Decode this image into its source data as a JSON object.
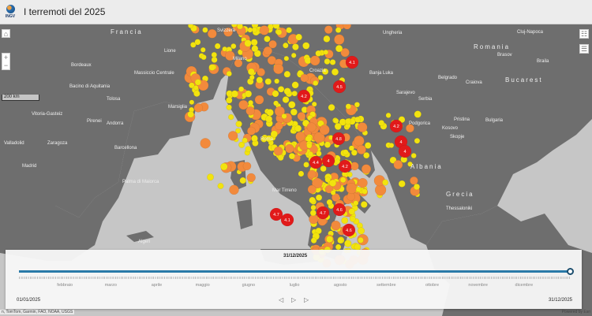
{
  "header": {
    "logo_text": "INGV",
    "title": "I terremoti del 2025"
  },
  "map": {
    "controls": {
      "home": "home-icon",
      "zoom_in": "+",
      "zoom_out": "−",
      "legend": "legend-icon",
      "layers": "layer-list-icon"
    },
    "scale": "200 km",
    "place_labels": [
      "Francia",
      "Svizzera",
      "Ungheria",
      "Cluj-Napoca",
      "Romania",
      "Brasov",
      "Braila",
      "Lione",
      "Bordeaux",
      "Massiccio Centrale",
      "Bacino di Aquitania",
      "Tolosa",
      "Marsiglia",
      "Vitoria-Gasteiz",
      "Pirenei",
      "Andorra",
      "Zaragoza",
      "Barcellona",
      "Valladolid",
      "Madrid",
      "Palma di Maiorca",
      "Croazia",
      "Banja Luka",
      "Sarajevo",
      "Serbia",
      "Belgrado",
      "Craiova",
      "Bucarest",
      "Bulgaria",
      "Pristina",
      "Kosovo",
      "Skopje",
      "Podgorica",
      "Albania",
      "Grecia",
      "Thessaloniki",
      "Roma",
      "Mar Tirreno",
      "Milano",
      "Algeri"
    ],
    "colors": {
      "small": "#f2e30e",
      "medium": "#f28a3c",
      "large": "#e11a1a",
      "land": "#6e6e6e",
      "sea": "#c6c6c6"
    },
    "major_events": [
      "4.1",
      "4.5",
      "4.2",
      "4.2",
      "4.8",
      "4",
      "4",
      "4.4",
      "4",
      "4.2",
      "4.7",
      "4.1",
      "4.7",
      "4.6",
      "4.6"
    ]
  },
  "timeslider": {
    "current": "31/12/2025",
    "start": "01/01/2025",
    "end": "31/12/2025",
    "progress": 1.0,
    "months": [
      "febbraio",
      "marzo",
      "aprile",
      "maggio",
      "giugno",
      "luglio",
      "agosto",
      "settembre",
      "ottobre",
      "novembre",
      "dicembre"
    ],
    "prev": "◁",
    "play": "▷",
    "next": "▷"
  },
  "attribution": "n, TomTom, Garmin, FAO, NOAA, USGS",
  "powered": "Powered by Esri"
}
